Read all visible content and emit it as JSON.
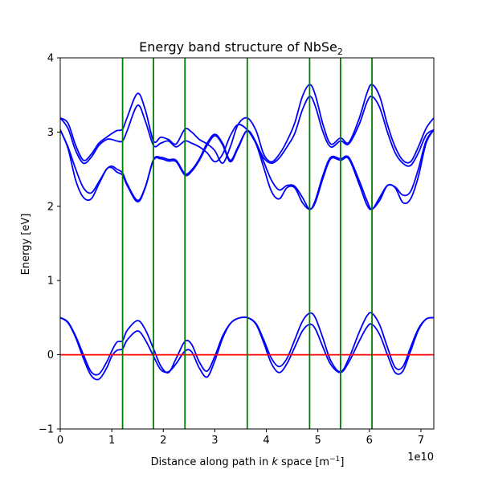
{
  "chart_data": {
    "type": "line",
    "title": "Energy band structure of NbSe",
    "title_subscript": "2",
    "xlabel_prefix": "Distance along path in ",
    "xlabel_var": "k",
    "xlabel_suffix": " space [m",
    "xlabel_exp": "−1",
    "xlabel_close": "]",
    "ylabel": "Energy [eV]",
    "x_offset_label": "1e10",
    "xlim": [
      0,
      7.25
    ],
    "ylim": [
      -1,
      4
    ],
    "xticks": [
      0,
      1,
      2,
      3,
      4,
      5,
      6,
      7
    ],
    "yticks": [
      -1,
      0,
      1,
      2,
      3,
      4
    ],
    "xtick_labels": [
      "0",
      "1",
      "2",
      "3",
      "4",
      "5",
      "6",
      "7"
    ],
    "ytick_labels": [
      "−1",
      "0",
      "1",
      "2",
      "3",
      "4"
    ],
    "fermi_level": 0,
    "symmetry_points_x": [
      1.21,
      1.81,
      2.42,
      3.63,
      4.84,
      5.44,
      6.05
    ],
    "colors": {
      "bands": "#0000ff",
      "fermi": "#ff0000",
      "symmetry": "#008000"
    },
    "series": [
      {
        "x": [
          0,
          0.15,
          0.3,
          0.45,
          0.6,
          0.75,
          0.9,
          1.0,
          1.1,
          1.21,
          1.3,
          1.5,
          1.65,
          1.81,
          1.95,
          2.1,
          2.25,
          2.42,
          2.55,
          2.7,
          2.85,
          3.0,
          3.15,
          3.3,
          3.45,
          3.63,
          3.8,
          3.95,
          4.1,
          4.25,
          4.4,
          4.55,
          4.7,
          4.84,
          4.95,
          5.1,
          5.25,
          5.44,
          5.6,
          5.8,
          5.95,
          6.05,
          6.2,
          6.35,
          6.5,
          6.65,
          6.8,
          6.95,
          7.1,
          7.25
        ],
        "values": [
          0.5,
          0.44,
          0.25,
          0.0,
          -0.23,
          -0.26,
          -0.1,
          0.05,
          0.17,
          0.19,
          0.33,
          0.46,
          0.34,
          0.08,
          -0.15,
          -0.24,
          -0.05,
          0.18,
          0.14,
          -0.1,
          -0.22,
          -0.02,
          0.25,
          0.42,
          0.49,
          0.5,
          0.42,
          0.2,
          -0.05,
          -0.16,
          -0.05,
          0.2,
          0.45,
          0.56,
          0.5,
          0.22,
          -0.08,
          -0.23,
          -0.05,
          0.3,
          0.52,
          0.56,
          0.4,
          0.1,
          -0.17,
          -0.16,
          0.1,
          0.35,
          0.48,
          0.5
        ]
      },
      {
        "x": [
          0,
          0.15,
          0.3,
          0.45,
          0.6,
          0.75,
          0.9,
          1.0,
          1.1,
          1.21,
          1.3,
          1.5,
          1.65,
          1.81,
          1.95,
          2.1,
          2.25,
          2.42,
          2.55,
          2.7,
          2.85,
          3.0,
          3.15,
          3.3,
          3.45,
          3.63,
          3.8,
          3.95,
          4.1,
          4.25,
          4.4,
          4.55,
          4.7,
          4.84,
          4.95,
          5.1,
          5.25,
          5.44,
          5.6,
          5.8,
          5.95,
          6.05,
          6.2,
          6.35,
          6.5,
          6.65,
          6.8,
          6.95,
          7.1,
          7.25
        ],
        "values": [
          0.5,
          0.43,
          0.23,
          -0.05,
          -0.28,
          -0.33,
          -0.18,
          -0.02,
          0.06,
          0.08,
          0.2,
          0.32,
          0.2,
          -0.02,
          -0.2,
          -0.23,
          -0.12,
          0.05,
          0.04,
          -0.18,
          -0.3,
          -0.08,
          0.22,
          0.42,
          0.49,
          0.5,
          0.41,
          0.16,
          -0.12,
          -0.24,
          -0.12,
          0.1,
          0.32,
          0.41,
          0.35,
          0.1,
          -0.13,
          -0.24,
          -0.1,
          0.18,
          0.37,
          0.41,
          0.27,
          0.0,
          -0.24,
          -0.22,
          0.05,
          0.33,
          0.48,
          0.5
        ]
      },
      {
        "x": [
          0,
          0.15,
          0.3,
          0.45,
          0.6,
          0.75,
          0.9,
          1.0,
          1.1,
          1.21,
          1.3,
          1.5,
          1.65,
          1.81,
          1.95,
          2.1,
          2.25,
          2.42,
          2.55,
          2.7,
          2.85,
          3.0,
          3.15,
          3.3,
          3.45,
          3.63,
          3.8,
          3.95,
          4.1,
          4.25,
          4.4,
          4.55,
          4.7,
          4.84,
          4.95,
          5.1,
          5.25,
          5.44,
          5.6,
          5.8,
          5.95,
          6.05,
          6.2,
          6.35,
          6.5,
          6.65,
          6.8,
          6.95,
          7.1,
          7.25
        ],
        "values": [
          3.03,
          2.78,
          2.35,
          2.12,
          2.1,
          2.3,
          2.5,
          2.52,
          2.46,
          2.42,
          2.28,
          2.06,
          2.25,
          2.62,
          2.64,
          2.61,
          2.6,
          2.42,
          2.47,
          2.62,
          2.82,
          2.95,
          2.83,
          2.6,
          2.78,
          3.02,
          2.84,
          2.52,
          2.2,
          2.1,
          2.25,
          2.25,
          2.05,
          1.96,
          2.05,
          2.38,
          2.64,
          2.62,
          2.64,
          2.3,
          2.02,
          1.96,
          2.08,
          2.28,
          2.25,
          2.05,
          2.1,
          2.4,
          2.85,
          3.03
        ]
      },
      {
        "x": [
          0,
          0.15,
          0.3,
          0.45,
          0.6,
          0.75,
          0.9,
          1.0,
          1.1,
          1.21,
          1.3,
          1.5,
          1.65,
          1.81,
          1.95,
          2.1,
          2.25,
          2.42,
          2.55,
          2.7,
          2.85,
          3.0,
          3.15,
          3.3,
          3.45,
          3.63,
          3.8,
          3.95,
          4.1,
          4.25,
          4.4,
          4.55,
          4.7,
          4.84,
          4.95,
          5.1,
          5.25,
          5.44,
          5.6,
          5.8,
          5.95,
          6.05,
          6.2,
          6.35,
          6.5,
          6.65,
          6.8,
          6.95,
          7.1,
          7.25
        ],
        "values": [
          3.03,
          2.8,
          2.5,
          2.25,
          2.18,
          2.33,
          2.5,
          2.54,
          2.5,
          2.45,
          2.3,
          2.08,
          2.26,
          2.63,
          2.66,
          2.63,
          2.62,
          2.44,
          2.49,
          2.64,
          2.85,
          2.97,
          2.85,
          2.62,
          2.8,
          3.02,
          2.86,
          2.6,
          2.35,
          2.22,
          2.28,
          2.27,
          2.12,
          1.96,
          2.08,
          2.42,
          2.66,
          2.64,
          2.66,
          2.35,
          2.08,
          1.96,
          2.12,
          2.28,
          2.26,
          2.15,
          2.2,
          2.5,
          2.88,
          3.03
        ]
      },
      {
        "x": [
          0,
          0.15,
          0.3,
          0.45,
          0.6,
          0.75,
          0.9,
          1.0,
          1.1,
          1.21,
          1.3,
          1.5,
          1.65,
          1.81,
          1.95,
          2.1,
          2.25,
          2.42,
          2.55,
          2.7,
          2.85,
          3.0,
          3.15,
          3.3,
          3.45,
          3.63,
          3.8,
          3.95,
          4.1,
          4.25,
          4.4,
          4.55,
          4.7,
          4.84,
          4.95,
          5.1,
          5.25,
          5.44,
          5.6,
          5.8,
          5.95,
          6.05,
          6.2,
          6.35,
          6.5,
          6.65,
          6.8,
          6.95,
          7.1,
          7.25
        ],
        "values": [
          3.19,
          3.05,
          2.75,
          2.58,
          2.66,
          2.82,
          2.9,
          2.9,
          2.88,
          2.88,
          3.02,
          3.36,
          3.15,
          2.82,
          2.85,
          2.88,
          2.8,
          2.88,
          2.85,
          2.8,
          2.72,
          2.6,
          2.7,
          2.95,
          3.1,
          3.03,
          2.85,
          2.65,
          2.58,
          2.65,
          2.8,
          2.98,
          3.3,
          3.48,
          3.35,
          3.0,
          2.8,
          2.88,
          2.84,
          3.1,
          3.4,
          3.48,
          3.33,
          3.0,
          2.72,
          2.58,
          2.55,
          2.72,
          2.96,
          3.03
        ]
      },
      {
        "x": [
          0,
          0.15,
          0.3,
          0.45,
          0.6,
          0.75,
          0.9,
          1.0,
          1.1,
          1.21,
          1.3,
          1.5,
          1.65,
          1.81,
          1.95,
          2.1,
          2.25,
          2.42,
          2.55,
          2.7,
          2.85,
          3.0,
          3.15,
          3.3,
          3.45,
          3.63,
          3.8,
          3.95,
          4.1,
          4.25,
          4.4,
          4.55,
          4.7,
          4.84,
          4.95,
          5.1,
          5.25,
          5.44,
          5.6,
          5.8,
          5.95,
          6.05,
          6.2,
          6.35,
          6.5,
          6.65,
          6.8,
          6.95,
          7.1,
          7.25
        ],
        "values": [
          3.19,
          3.12,
          2.82,
          2.62,
          2.7,
          2.85,
          2.93,
          2.98,
          3.02,
          3.04,
          3.2,
          3.52,
          3.3,
          2.88,
          2.93,
          2.9,
          2.84,
          3.04,
          3.0,
          2.9,
          2.84,
          2.75,
          2.58,
          2.8,
          3.1,
          3.19,
          3.02,
          2.7,
          2.6,
          2.7,
          2.88,
          3.12,
          3.48,
          3.64,
          3.5,
          3.1,
          2.84,
          2.92,
          2.86,
          3.18,
          3.52,
          3.64,
          3.48,
          3.1,
          2.8,
          2.62,
          2.6,
          2.8,
          3.05,
          3.19
        ]
      }
    ]
  }
}
